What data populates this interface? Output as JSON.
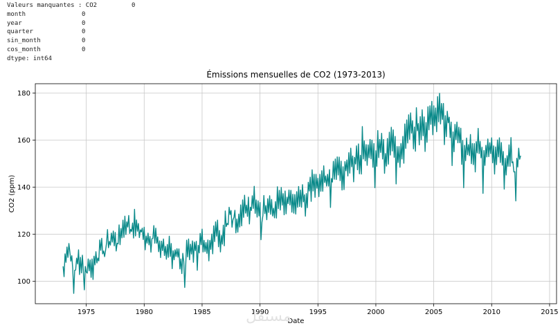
{
  "console": {
    "header_label": "Valeurs manquantes : CO2",
    "header_value": "0",
    "rows": [
      {
        "label": "month",
        "value": "0"
      },
      {
        "label": "year",
        "value": "0"
      },
      {
        "label": "quarter",
        "value": "0"
      },
      {
        "label": "sin_month",
        "value": "0"
      },
      {
        "label": "cos_month",
        "value": "0"
      }
    ],
    "dtype": "dtype: int64"
  },
  "watermark": "مستقل",
  "colors": {
    "series": "#0b8a8a",
    "grid": "#c8c8c8",
    "axis": "#000000"
  },
  "chart_data": {
    "type": "line",
    "title": "Émissions mensuelles de CO2 (1973-2013)",
    "xlabel": "Date",
    "ylabel": "CO2 (ppm)",
    "xlim": [
      1970.6,
      2015.6
    ],
    "ylim": [
      90.5,
      184
    ],
    "xticks": [
      1975,
      1980,
      1985,
      1990,
      1995,
      2000,
      2005,
      2010,
      2015
    ],
    "yticks": [
      100,
      120,
      140,
      160,
      180
    ],
    "grid": true,
    "series": [
      {
        "name": "CO2",
        "x_start": 1973.0,
        "x_step": 0.0833333,
        "values": [
          106.4,
          102.0,
          111.7,
          108.1,
          114.6,
          110.2,
          116.1,
          112.5,
          108.6,
          110.9,
          105.2,
          94.9,
          104.7,
          104.8,
          109.9,
          107.4,
          113.4,
          102.9,
          110.2,
          103.6,
          111.1,
          104.1,
          96.4,
          106.3,
          103.9,
          103.5,
          109.5,
          104.5,
          109.1,
          101.7,
          109.5,
          100.8,
          110.7,
          107.0,
          112.6,
          107.8,
          109.9,
          108.7,
          117.6,
          113.2,
          118.3,
          111.7,
          112.9,
          110.5,
          113.2,
          116.3,
          122.0,
          114.3,
          117.0,
          115.4,
          120.5,
          116.7,
          121.4,
          115.1,
          120.8,
          112.9,
          116.2,
          115.9,
          124.0,
          115.6,
          122.5,
          118.5,
          126.0,
          118.7,
          127.7,
          119.9,
          125.3,
          123.1,
          128.0,
          120.4,
          122.1,
          121.2,
          124.8,
          118.4,
          130.6,
          119.3,
          126.1,
          121.3,
          124.6,
          118.6,
          121.9,
          121.0,
          122.6,
          117.8,
          123.0,
          113.4,
          119.3,
          116.2,
          120.5,
          115.5,
          119.1,
          112.4,
          118.1,
          118.3,
          123.7,
          116.2,
          122.6,
          116.2,
          118.9,
          112.6,
          117.2,
          110.1,
          117.1,
          113.1,
          118.0,
          111.0,
          114.9,
          109.4,
          115.7,
          110.2,
          119.2,
          110.6,
          116.1,
          105.4,
          113.0,
          109.2,
          113.4,
          110.6,
          113.9,
          110.3,
          113.8,
          105.3,
          109.5,
          103.3,
          111.9,
          108.4,
          97.4,
          106.5,
          117.5,
          110.4,
          118.0,
          109.2,
          115.8,
          111.6,
          117.2,
          108.1,
          116.7,
          113.1,
          117.0,
          104.7,
          115.3,
          112.1,
          120.4,
          115.6,
          122.2,
          112.5,
          117.4,
          112.6,
          116.5,
          111.9,
          117.6,
          108.7,
          117.4,
          113.6,
          120.1,
          111.7,
          123.6,
          116.9,
          125.3,
          119.2,
          126.0,
          114.7,
          121.6,
          112.5,
          119.5,
          115.8,
          123.9,
          115.1,
          129.9,
          123.3,
          124.6,
          124.1,
          131.5,
          128.4,
          130.1,
          123.0,
          126.2,
          127.2,
          130.2,
          120.6,
          126.5,
          120.9,
          128.6,
          123.1,
          132.5,
          123.6,
          134.6,
          127.2,
          136.6,
          129.0,
          132.4,
          127.6,
          135.8,
          124.4,
          131.5,
          130.1,
          136.4,
          131.0,
          140.4,
          128.9,
          134.6,
          127.3,
          134.2,
          127.8,
          133.5,
          117.7,
          125.2,
          128.0,
          136.5,
          128.8,
          132.2,
          126.2,
          135.1,
          129.3,
          136.4,
          128.5,
          134.8,
          127.8,
          131.1,
          127.0,
          133.9,
          126.9,
          140.2,
          130.9,
          138.7,
          130.3,
          139.9,
          132.4,
          137.3,
          128.3,
          138.4,
          128.7,
          135.8,
          133.0,
          138.8,
          132.5,
          138.7,
          129.4,
          137.0,
          129.0,
          136.9,
          128.6,
          138.1,
          131.5,
          140.3,
          131.8,
          138.8,
          131.5,
          141.1,
          133.8,
          136.8,
          127.7,
          137.3,
          131.3,
          142.1,
          138.4,
          144.3,
          134.0,
          147.4,
          138.4,
          145.5,
          135.7,
          145.5,
          139.6,
          143.8,
          136.0,
          145.5,
          138.3,
          147.0,
          138.3,
          149.1,
          142.0,
          144.8,
          140.5,
          145.5,
          140.5,
          147.5,
          131.4,
          143.7,
          142.2,
          151.0,
          143.4,
          152.0,
          143.3,
          152.9,
          145.2,
          152.8,
          142.8,
          151.1,
          138.8,
          148.7,
          139.0,
          150.9,
          147.0,
          151.6,
          144.8,
          154.7,
          146.0,
          156.6,
          148.7,
          153.3,
          142.3,
          152.7,
          149.9,
          157.6,
          147.4,
          158.4,
          145.7,
          153.6,
          145.6,
          165.8,
          152.0,
          159.7,
          151.2,
          158.1,
          149.3,
          158.0,
          152.5,
          160.3,
          152.1,
          160.0,
          148.5,
          158.6,
          139.8,
          155.5,
          148.9,
          164.1,
          152.6,
          160.3,
          154.8,
          162.9,
          152.0,
          160.3,
          145.9,
          154.3,
          149.0,
          160.7,
          149.8,
          163.4,
          153.7,
          165.5,
          155.4,
          164.4,
          152.7,
          161.6,
          141.4,
          157.3,
          150.5,
          157.3,
          148.5,
          158.6,
          152.0,
          161.6,
          150.2,
          166.9,
          156.5,
          168.6,
          158.8,
          170.8,
          160.4,
          171.6,
          163.0,
          168.3,
          156.3,
          165.6,
          155.3,
          173.8,
          164.0,
          167.1,
          158.0,
          170.0,
          160.2,
          172.9,
          161.9,
          169.9,
          155.2,
          167.5,
          159.1,
          174.2,
          164.4,
          174.6,
          166.7,
          176.5,
          162.3,
          174.6,
          166.1,
          173.7,
          163.6,
          178.5,
          167.8,
          179.9,
          166.9,
          175.6,
          168.8,
          175.6,
          158.1,
          170.4,
          161.5,
          172.3,
          167.4,
          169.8,
          161.1,
          167.7,
          149.2,
          163.5,
          155.1,
          166.7,
          160.3,
          167.7,
          158.9,
          165.5,
          158.9,
          165.1,
          149.7,
          159.9,
          139.8,
          157.8,
          151.3,
          160.9,
          153.8,
          158.1,
          153.4,
          162.4,
          150.0,
          158.6,
          149.6,
          158.6,
          146.5,
          159.4,
          154.6,
          165.0,
          154.3,
          159.5,
          152.5,
          157.0,
          137.4,
          155.6,
          149.3,
          157.8,
          152.9,
          160.5,
          153.0,
          158.9,
          154.3,
          161.0,
          150.4,
          157.6,
          145.6,
          157.1,
          149.6,
          160.1,
          152.9,
          161.0,
          150.5,
          159.0,
          149.4,
          155.2,
          139.2,
          152.3,
          145.2,
          153.4,
          148.9,
          158.0,
          148.9,
          161.1,
          150.4,
          150.8,
          146.5,
          146.6,
          134.2,
          152.3,
          148.6,
          156.6,
          151.9,
          153.4
        ]
      }
    ]
  }
}
